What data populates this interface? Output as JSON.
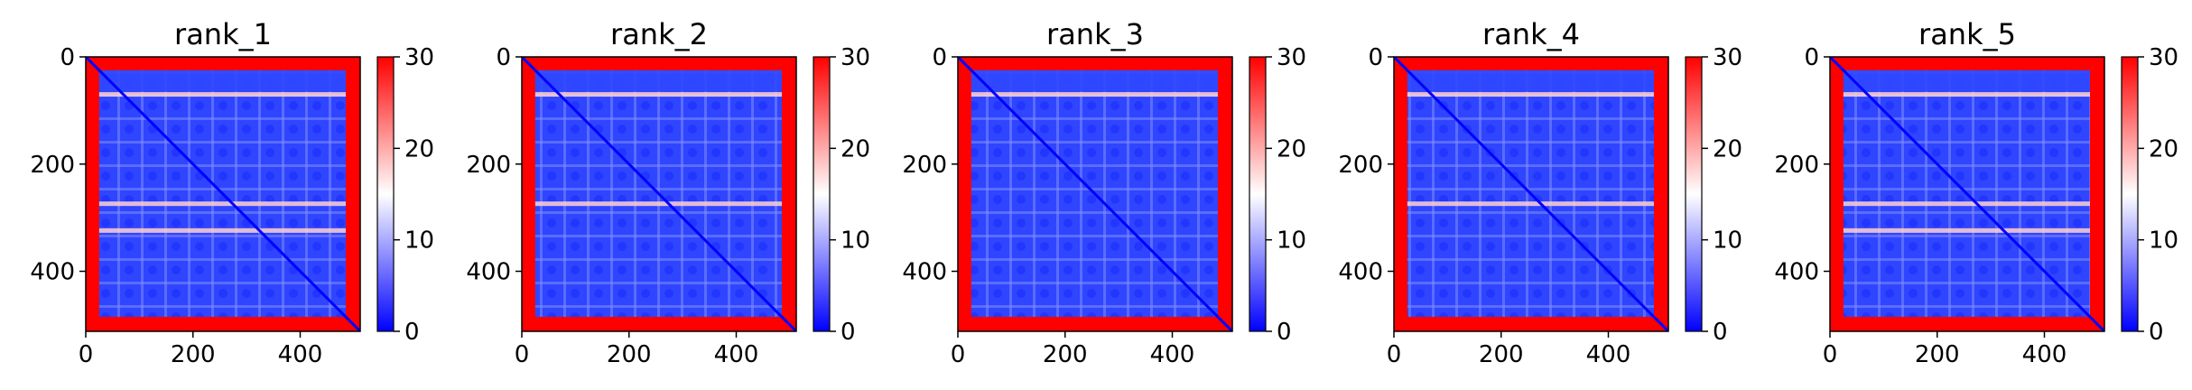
{
  "chart_data": [
    {
      "type": "heatmap",
      "title": "rank_1",
      "xlabel": "",
      "ylabel": "",
      "xlim": [
        0,
        512
      ],
      "ylim": [
        512,
        0
      ],
      "xticks": [
        0,
        200,
        400
      ],
      "yticks": [
        0,
        200,
        400
      ],
      "colorbar": {
        "vmin": 0,
        "vmax": 30,
        "ticks": [
          0,
          10,
          20,
          30
        ],
        "colormap": "bwr"
      },
      "bright_rows": [
        70,
        274,
        324
      ],
      "blue_core": [
        25,
        485
      ]
    },
    {
      "type": "heatmap",
      "title": "rank_2",
      "xlabel": "",
      "ylabel": "",
      "xlim": [
        0,
        512
      ],
      "ylim": [
        512,
        0
      ],
      "xticks": [
        0,
        200,
        400
      ],
      "yticks": [
        0,
        200,
        400
      ],
      "colorbar": {
        "vmin": 0,
        "vmax": 30,
        "ticks": [
          0,
          10,
          20,
          30
        ],
        "colormap": "bwr"
      },
      "bright_rows": [
        70,
        274
      ],
      "blue_core": [
        25,
        485
      ]
    },
    {
      "type": "heatmap",
      "title": "rank_3",
      "xlabel": "",
      "ylabel": "",
      "xlim": [
        0,
        512
      ],
      "ylim": [
        512,
        0
      ],
      "xticks": [
        0,
        200,
        400
      ],
      "yticks": [
        0,
        200,
        400
      ],
      "colorbar": {
        "vmin": 0,
        "vmax": 30,
        "ticks": [
          0,
          10,
          20,
          30
        ],
        "colormap": "bwr"
      },
      "bright_rows": [
        70
      ],
      "blue_core": [
        25,
        485
      ]
    },
    {
      "type": "heatmap",
      "title": "rank_4",
      "xlabel": "",
      "ylabel": "",
      "xlim": [
        0,
        512
      ],
      "ylim": [
        512,
        0
      ],
      "xticks": [
        0,
        200,
        400
      ],
      "yticks": [
        0,
        200,
        400
      ],
      "colorbar": {
        "vmin": 0,
        "vmax": 30,
        "ticks": [
          0,
          10,
          20,
          30
        ],
        "colormap": "bwr"
      },
      "bright_rows": [
        70,
        274
      ],
      "blue_core": [
        25,
        485
      ]
    },
    {
      "type": "heatmap",
      "title": "rank_5",
      "xlabel": "",
      "ylabel": "",
      "xlim": [
        0,
        512
      ],
      "ylim": [
        512,
        0
      ],
      "xticks": [
        0,
        200,
        400
      ],
      "yticks": [
        0,
        200,
        400
      ],
      "colorbar": {
        "vmin": 0,
        "vmax": 30,
        "ticks": [
          0,
          10,
          20,
          30
        ],
        "colormap": "bwr"
      },
      "bright_rows": [
        70,
        274,
        324
      ],
      "blue_core": [
        25,
        485
      ]
    }
  ],
  "colors": {
    "low": "#0000ff",
    "mid": "#ffffff",
    "high": "#ff0000",
    "axis": "#000000"
  }
}
